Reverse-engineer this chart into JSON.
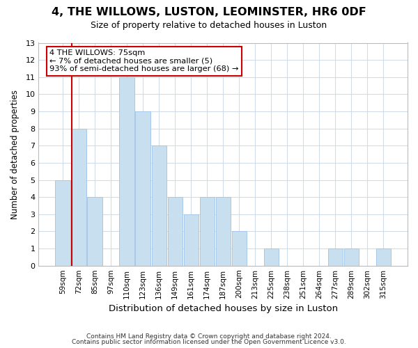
{
  "title": "4, THE WILLOWS, LUSTON, LEOMINSTER, HR6 0DF",
  "subtitle": "Size of property relative to detached houses in Luston",
  "xlabel": "Distribution of detached houses by size in Luston",
  "ylabel": "Number of detached properties",
  "bar_color": "#c8dff0",
  "bar_edge_color": "#a8c8e8",
  "annotation_line_color": "#cc0000",
  "categories": [
    "59sqm",
    "72sqm",
    "85sqm",
    "97sqm",
    "110sqm",
    "123sqm",
    "136sqm",
    "149sqm",
    "161sqm",
    "174sqm",
    "187sqm",
    "200sqm",
    "213sqm",
    "225sqm",
    "238sqm",
    "251sqm",
    "264sqm",
    "277sqm",
    "289sqm",
    "302sqm",
    "315sqm"
  ],
  "values": [
    5,
    8,
    4,
    0,
    11,
    9,
    7,
    4,
    3,
    4,
    4,
    2,
    0,
    1,
    0,
    0,
    0,
    1,
    1,
    0,
    1
  ],
  "ylim": [
    0,
    13
  ],
  "yticks": [
    0,
    1,
    2,
    3,
    4,
    5,
    6,
    7,
    8,
    9,
    10,
    11,
    12,
    13
  ],
  "annotation_line1": "4 THE WILLOWS: 75sqm",
  "annotation_line2": "← 7% of detached houses are smaller (5)",
  "annotation_line3": "93% of semi-detached houses are larger (68) →",
  "footer1": "Contains HM Land Registry data © Crown copyright and database right 2024.",
  "footer2": "Contains public sector information licensed under the Open Government Licence v3.0.",
  "background_color": "#ffffff",
  "grid_color": "#d0dce8",
  "annotation_red_line_bar_index": 1
}
